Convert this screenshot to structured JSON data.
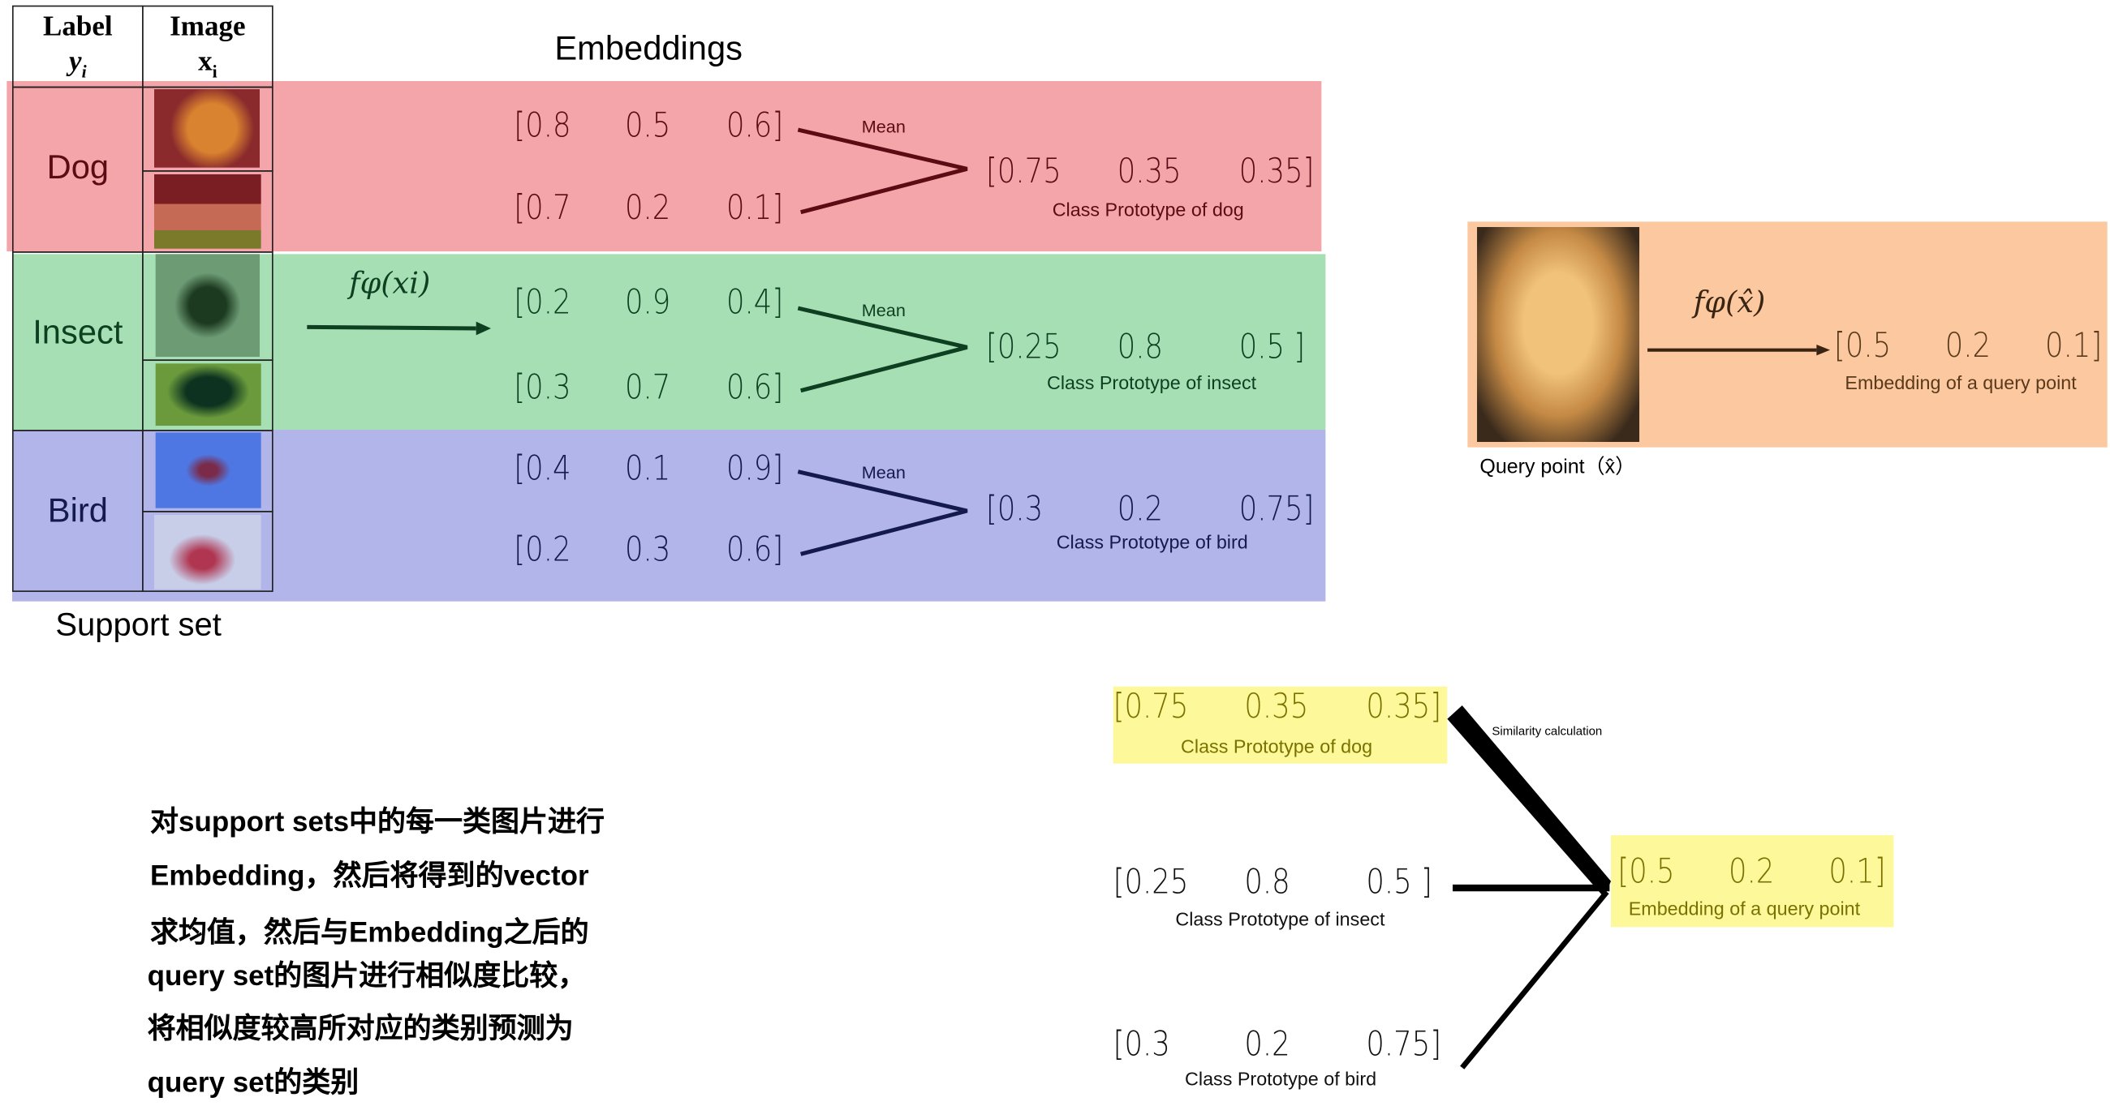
{
  "table": {
    "header_label": "Label",
    "header_label_sub": "y",
    "header_label_subscript": "i",
    "header_image": "Image",
    "header_image_sub": "x",
    "header_image_subscript": "i",
    "classes": [
      "Dog",
      "Insect",
      "Bird"
    ]
  },
  "embeddings_title": "Embeddings",
  "function_label": "fφ(xi)",
  "mean_label": "Mean",
  "support_set_label": "Support set",
  "embeddings": [
    [
      "[0.8",
      "0.5",
      "0.6]"
    ],
    [
      "[0.7",
      "0.2",
      "0.1]"
    ],
    [
      "[0.2",
      "0.9",
      "0.4]"
    ],
    [
      "[0.3",
      "0.7",
      "0.6]"
    ],
    [
      "[0.4",
      "0.1",
      "0.9]"
    ],
    [
      "[0.2",
      "0.3",
      "0.6]"
    ]
  ],
  "prototypes": [
    {
      "values": [
        "[0.75",
        "0.35",
        "0.35]"
      ],
      "caption": "Class Prototype of dog"
    },
    {
      "values": [
        "[0.25",
        "0.8",
        "0.5  ]"
      ],
      "caption": "Class Prototype of insect"
    },
    {
      "values": [
        "[0.3",
        "0.2",
        "0.75]"
      ],
      "caption": "Class Prototype of bird"
    }
  ],
  "query": {
    "function_label": "fφ(x̂)",
    "values": [
      "[0.5",
      "0.2",
      "0.1]"
    ],
    "caption": "Embedding of a query point",
    "point_label": "Query point（x̂）"
  },
  "similarity_label": "Similarity calculation",
  "description_lines": [
    "对support sets中的每一类图片进行",
    "Embedding，然后将得到的vector",
    "求均值，然后与Embedding之后的",
    "query set的图片进行相似度比较，",
    "将相似度较高所对应的类别预测为",
    "query set的类别"
  ],
  "colors": {
    "dog_band": "#f4a5aa",
    "insect_band": "#a7dfb5",
    "bird_band": "#b1b5ea",
    "query_band": "#fcc8a0",
    "highlight": "#fdf89a",
    "dog_text": "#5c0b14",
    "insect_text": "#0d3f20",
    "bird_text": "#141a4c"
  }
}
